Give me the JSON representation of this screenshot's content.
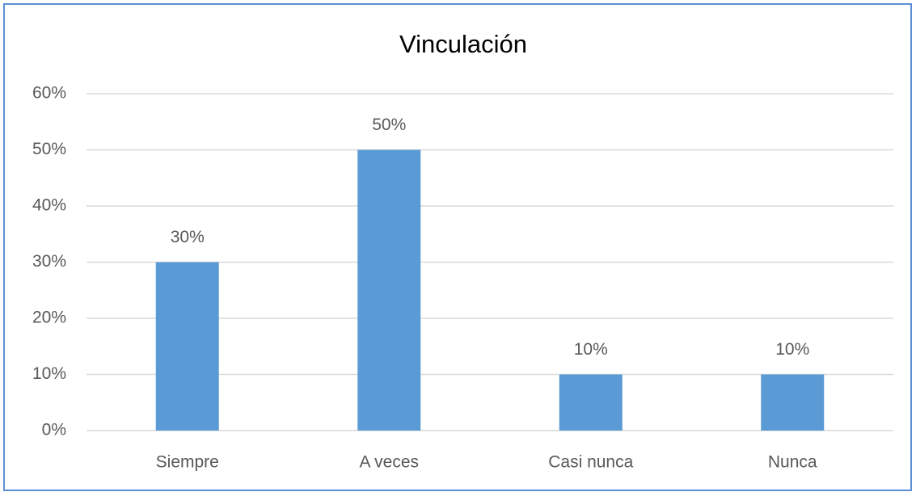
{
  "chart_data": {
    "type": "bar",
    "title": "Vinculación",
    "categories": [
      "Siempre",
      "A veces",
      "Casi nunca",
      "Nunca"
    ],
    "values": [
      30,
      50,
      10,
      10
    ],
    "value_labels": [
      "30%",
      "50%",
      "10%",
      "10%"
    ],
    "color": "#5b9bd5",
    "ylim": [
      0,
      60
    ],
    "yticks": [
      {
        "value": 0,
        "label": "0%"
      },
      {
        "value": 10,
        "label": "10%"
      },
      {
        "value": 20,
        "label": "20%"
      },
      {
        "value": 30,
        "label": "30%"
      },
      {
        "value": 40,
        "label": "40%"
      },
      {
        "value": 50,
        "label": "50%"
      },
      {
        "value": 60,
        "label": "60%"
      }
    ],
    "grid": true
  }
}
